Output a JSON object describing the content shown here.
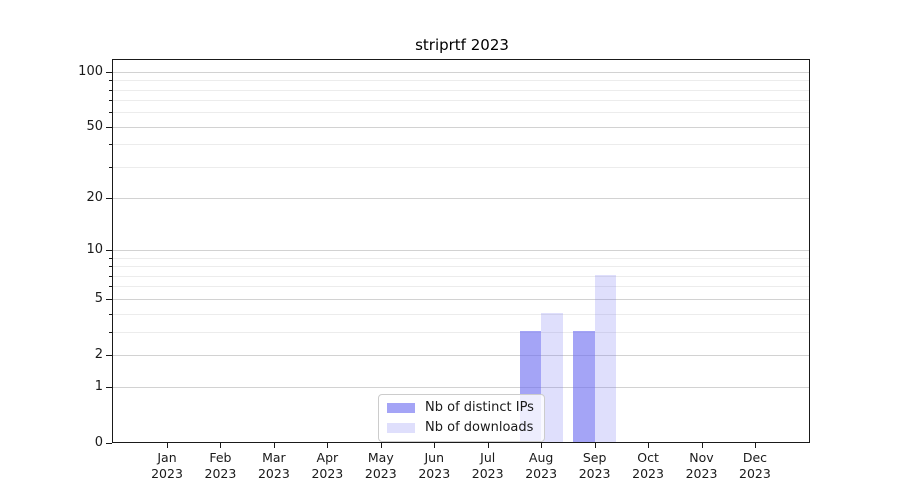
{
  "title": "striprtf 2023",
  "legend": {
    "items": [
      {
        "label": "Nb of distinct IPs"
      },
      {
        "label": "Nb of downloads"
      }
    ]
  },
  "chart_data": {
    "type": "bar",
    "title": "striprtf 2023",
    "categories": [
      "Jan 2023",
      "Feb 2023",
      "Mar 2023",
      "Apr 2023",
      "May 2023",
      "Jun 2023",
      "Jul 2023",
      "Aug 2023",
      "Sep 2023",
      "Oct 2023",
      "Nov 2023",
      "Dec 2023"
    ],
    "series": [
      {
        "name": "Nb of distinct IPs",
        "values": [
          0,
          0,
          0,
          0,
          0,
          0,
          0,
          3,
          3,
          0,
          0,
          0
        ],
        "color": "rgba(108,108,240,0.62)"
      },
      {
        "name": "Nb of downloads",
        "values": [
          0,
          0,
          0,
          0,
          0,
          0,
          0,
          4,
          7,
          0,
          0,
          0
        ],
        "color": "rgba(108,108,240,0.22)"
      }
    ],
    "xlabel": "",
    "ylabel": "",
    "yscale": "log1p",
    "ylim": [
      0,
      116
    ],
    "y_major_ticks": [
      0,
      1,
      2,
      5,
      10,
      20,
      50,
      100
    ],
    "y_minor_ticks": [
      3,
      4,
      6,
      7,
      8,
      9,
      30,
      40,
      60,
      70,
      80,
      90
    ],
    "grid": "horizontal, major and minor",
    "legend_position": "lower center, overlapping Aug bars",
    "colors": {
      "bar_distinct_ips_rendered": "#a5a5f6",
      "bar_downloads_rendered": "#dedefb",
      "grid_major": "#d2d2d2",
      "grid_minor": "#ececec",
      "axis": "#1a1a1a"
    }
  }
}
